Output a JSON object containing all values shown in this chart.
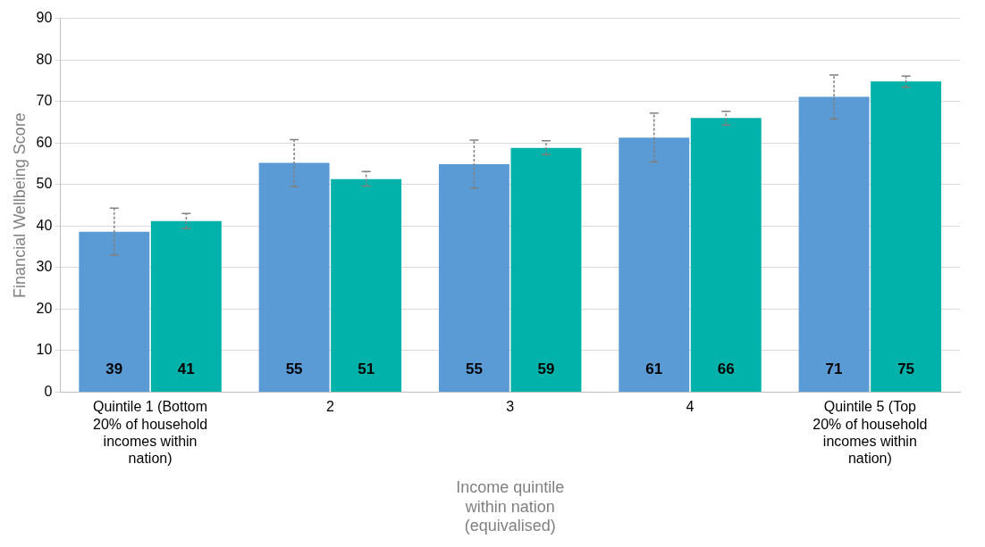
{
  "chart_data": {
    "type": "bar",
    "xlabel": "Income quintile within nation (equivalised)",
    "ylabel": "Financial Wellbeing Score",
    "categories": [
      "Quintile 1 (Bottom 20% of household incomes within nation)",
      "2",
      "3",
      "4",
      "Quintile 5 (Top 20% of household incomes within nation)"
    ],
    "series": [
      {
        "color": "#5b9bd5",
        "values": [
          38.6,
          55.2,
          54.9,
          61.3,
          71.1
        ],
        "value_labels": [
          "39",
          "55",
          "55",
          "61",
          "71"
        ],
        "errors": [
          [
            33.0,
            44.3
          ],
          [
            49.5,
            60.8
          ],
          [
            49.1,
            60.7
          ],
          [
            55.4,
            67.2
          ],
          [
            65.8,
            76.4
          ]
        ]
      },
      {
        "color": "#00b2a9",
        "values": [
          41.2,
          51.3,
          58.8,
          66.0,
          74.8
        ],
        "value_labels": [
          "41",
          "51",
          "59",
          "66",
          "75"
        ],
        "errors": [
          [
            39.4,
            43.0
          ],
          [
            49.6,
            53.1
          ],
          [
            57.2,
            60.5
          ],
          [
            64.3,
            67.6
          ],
          [
            73.4,
            76.1
          ]
        ]
      }
    ],
    "ylim": [
      0,
      90
    ],
    "yticks": [
      0,
      10,
      20,
      30,
      40,
      50,
      60,
      70,
      80,
      90
    ],
    "grid": "y"
  }
}
